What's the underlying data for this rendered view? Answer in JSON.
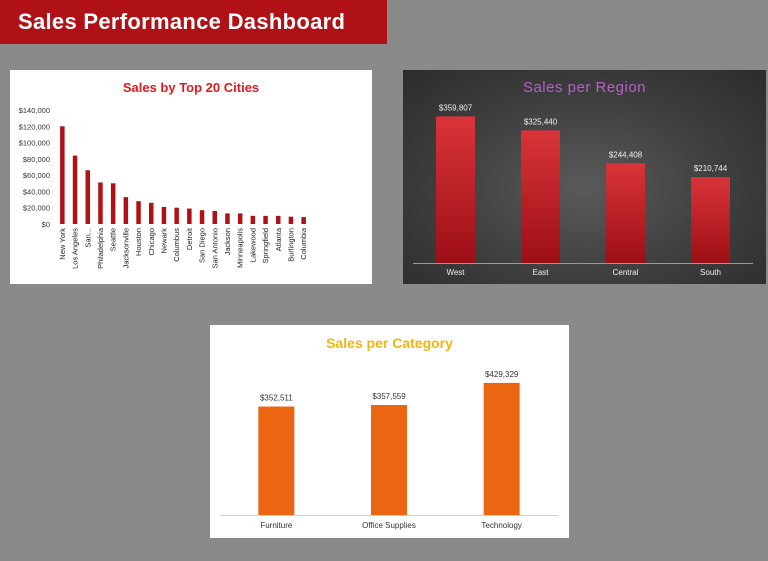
{
  "dashboard": {
    "title": "Sales Performance Dashboard"
  },
  "colors": {
    "banner": "#b01117",
    "city_bar": "#b01117",
    "region_bar_top": "#d9343a",
    "region_bar_bottom": "#9c0f15",
    "category_bar": "#ec6511",
    "city_title": "#e0191f",
    "region_title": "#b660c9",
    "category_title": "#f2b50f"
  },
  "chart_data": [
    {
      "type": "bar",
      "title": "Sales by Top 20 Cities",
      "categories": [
        "New York",
        "Los Angeles",
        "San...",
        "Philadelphia",
        "Seattle",
        "Jacksonville",
        "Houston",
        "Chicago",
        "Newark",
        "Columbus",
        "Detroit",
        "San Diego",
        "San Antonio",
        "Jackson",
        "Minneapolis",
        "Lakewood",
        "Springfield",
        "Atlanta",
        "Burlington",
        "Columbia"
      ],
      "values": [
        120000,
        84000,
        66000,
        51000,
        50000,
        33000,
        28000,
        26000,
        21000,
        20000,
        19000,
        17000,
        16000,
        13000,
        13000,
        10000,
        10000,
        10000,
        9000,
        8500
      ],
      "ylim": [
        0,
        140000
      ],
      "yticks": [
        0,
        20000,
        40000,
        60000,
        80000,
        100000,
        120000,
        140000
      ],
      "ytick_labels": [
        "$0",
        "$20,000",
        "$40,000",
        "$60,000",
        "$80,000",
        "$100,000",
        "$120,000",
        "$140,000"
      ],
      "grid": false,
      "legend": "none"
    },
    {
      "type": "bar",
      "title": "Sales per Region",
      "categories": [
        "West",
        "East",
        "Central",
        "South"
      ],
      "values": [
        359807,
        325440,
        244408,
        210744
      ],
      "data_labels": [
        "$359,807",
        "$325,440",
        "$244,408",
        "$210,744"
      ],
      "ylim": [
        0,
        400000
      ],
      "grid": false,
      "legend": "none"
    },
    {
      "type": "bar",
      "title": "Sales per Category",
      "categories": [
        "Furniture",
        "Office Supplies",
        "Technology"
      ],
      "values": [
        352511,
        357559,
        429329
      ],
      "data_labels": [
        "$352,511",
        "$357,559",
        "$429,329"
      ],
      "ylim": [
        0,
        520000
      ],
      "grid": false,
      "legend": "none"
    }
  ]
}
